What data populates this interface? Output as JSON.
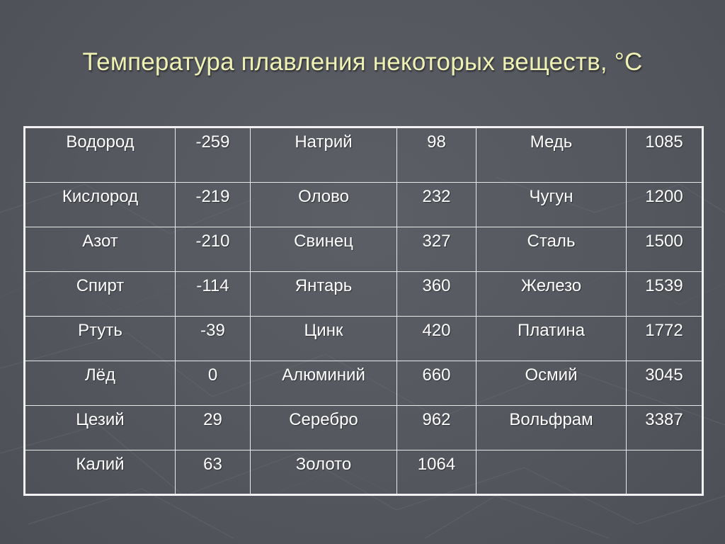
{
  "slide": {
    "title": "Температура плавления некоторых веществ, °С"
  },
  "table": {
    "rows": [
      [
        "Водород",
        "-259",
        "Натрий",
        "98",
        "Медь",
        "1085"
      ],
      [
        "Кислород",
        "-219",
        "Олово",
        "232",
        "Чугун",
        "1200"
      ],
      [
        "Азот",
        "-210",
        "Свинец",
        "327",
        "Сталь",
        "1500"
      ],
      [
        "Спирт",
        "-114",
        "Янтарь",
        "360",
        "Железо",
        "1539"
      ],
      [
        "Ртуть",
        "-39",
        "Цинк",
        "420",
        "Платина",
        "1772"
      ],
      [
        "Лёд",
        "0",
        "Алюминий",
        "660",
        "Осмий",
        "3045"
      ],
      [
        "Цезий",
        "29",
        "Серебро",
        "962",
        "Вольфрам",
        "3387"
      ],
      [
        "Калий",
        "63",
        "Золото",
        "1064",
        "",
        ""
      ]
    ]
  }
}
